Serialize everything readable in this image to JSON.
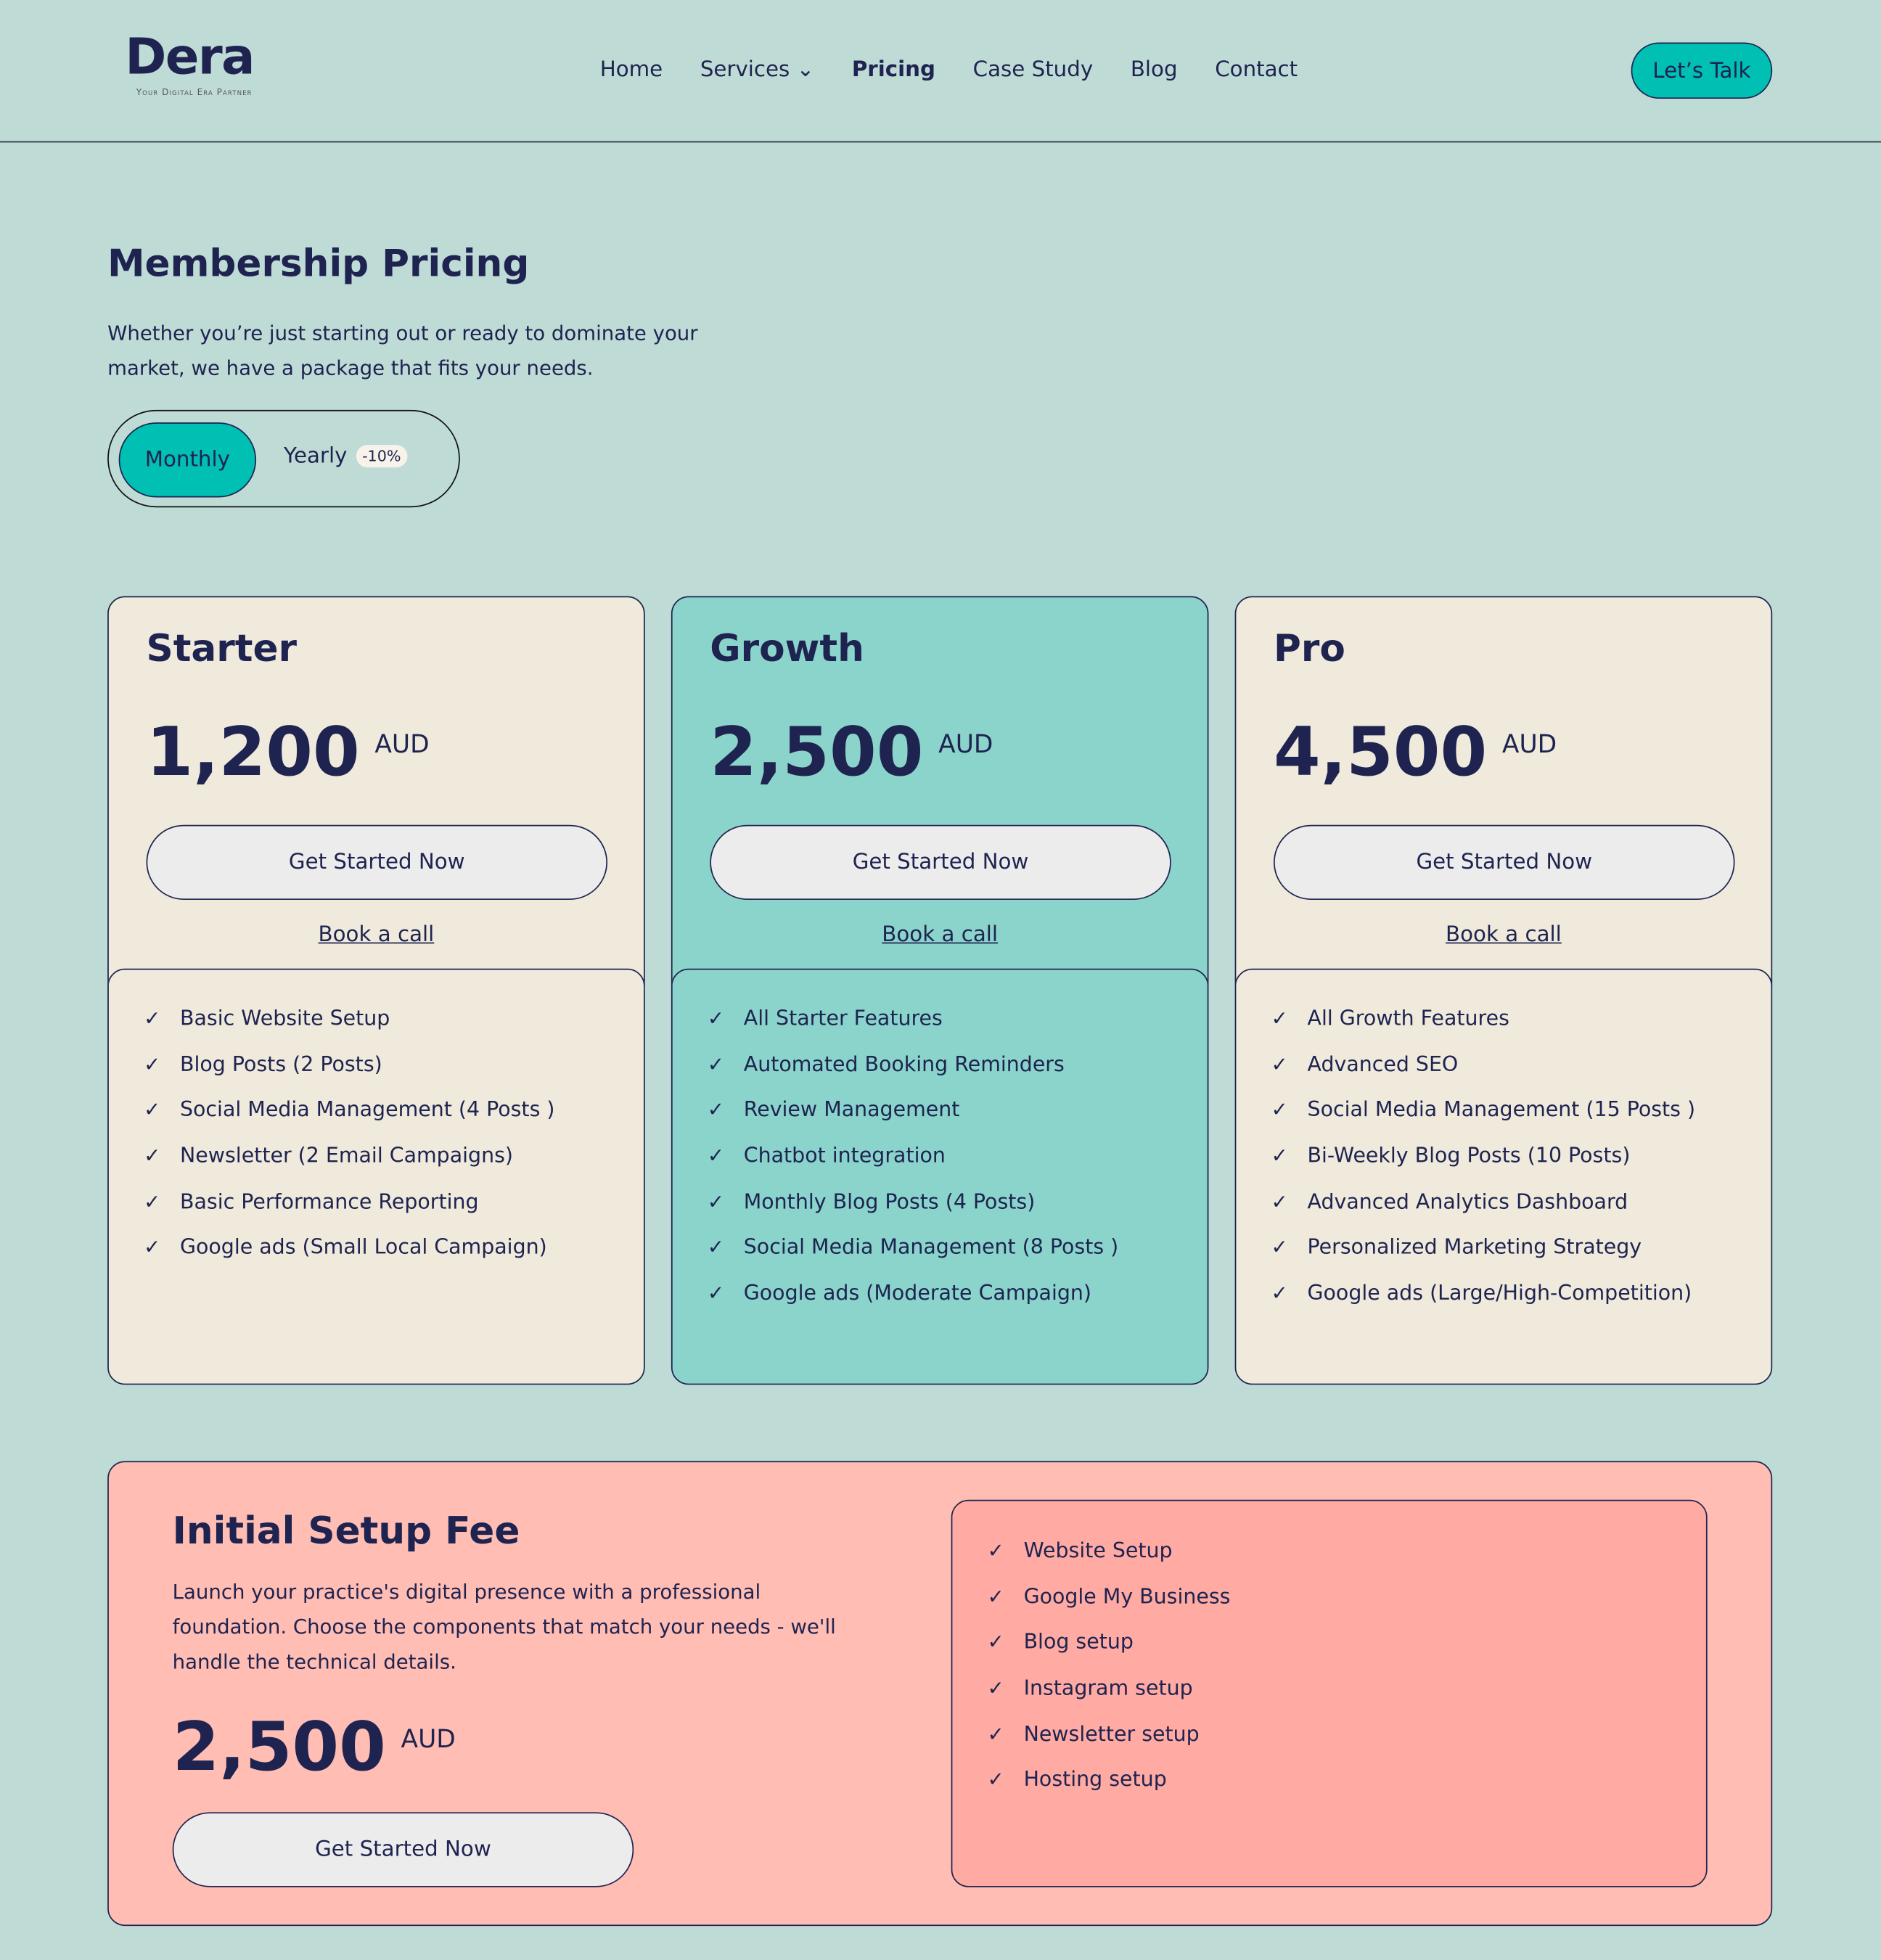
{
  "header": {
    "logo_text": "Dera",
    "logo_tagline": "Your Digital Era Partner",
    "nav": [
      {
        "label": "Home"
      },
      {
        "label": "Services ⌄"
      },
      {
        "label": "Pricing"
      },
      {
        "label": "Case Study"
      },
      {
        "label": "Blog"
      },
      {
        "label": "Contact"
      }
    ],
    "active_nav": "Pricing",
    "cta": "Let’s Talk"
  },
  "main": {
    "title": "Membership Pricing",
    "subtitle": "Whether you’re just starting out or ready to dominate your market, we have a package that fits your needs.",
    "toggle": {
      "monthly": "Monthly",
      "yearly": "Yearly",
      "discount": "-10%",
      "selected": "Monthly"
    },
    "plans": [
      {
        "name": "Starter",
        "price": "1,200",
        "currency": "AUD",
        "button": "Get Started Now",
        "link": "Book a call",
        "features": [
          "Basic Website Setup",
          "Blog Posts (2 Posts)",
          "Social Media Management (4 Posts )",
          "Newsletter (2 Email Campaigns)",
          "Basic Performance Reporting",
          "Google ads (Small Local Campaign)"
        ]
      },
      {
        "name": "Growth",
        "price": "2,500",
        "currency": "AUD",
        "button": "Get Started Now",
        "link": "Book a call",
        "features": [
          "All Starter Features",
          "Automated Booking Reminders",
          "Review Management",
          "Chatbot integration",
          "Monthly Blog Posts (4 Posts)",
          "Social Media Management (8 Posts )",
          "Google ads (Moderate Campaign)"
        ]
      },
      {
        "name": "Pro",
        "price": "4,500",
        "currency": "AUD",
        "button": "Get Started Now",
        "link": "Book a call",
        "features": [
          "All Growth Features",
          "Advanced SEO",
          "Social Media Management (15 Posts )",
          "Bi-Weekly Blog Posts (10 Posts)",
          "Advanced Analytics Dashboard",
          "Personalized Marketing Strategy",
          "Google ads (Large/High-Competition)"
        ]
      }
    ],
    "setup": {
      "title": "Initial Setup Fee",
      "description": "Launch your practice's digital presence with a professional foundation. Choose the components that match your needs - we'll handle the technical details.",
      "price": "2,500",
      "currency": "AUD",
      "button": "Get Started Now",
      "features": [
        "Website Setup",
        "Google My Business",
        "Blog setup",
        "Instagram setup",
        "Newsletter setup",
        "Hosting setup"
      ]
    }
  },
  "colors": {
    "background": "#bfdbd6",
    "accent": "#00bfb3",
    "navy": "#1e2350",
    "card": "#efeadb",
    "growth": "#8ad4cb",
    "setup": "#ffbdb3"
  },
  "icons": {
    "feature": "check-icon",
    "services": "chevron-down-icon"
  }
}
